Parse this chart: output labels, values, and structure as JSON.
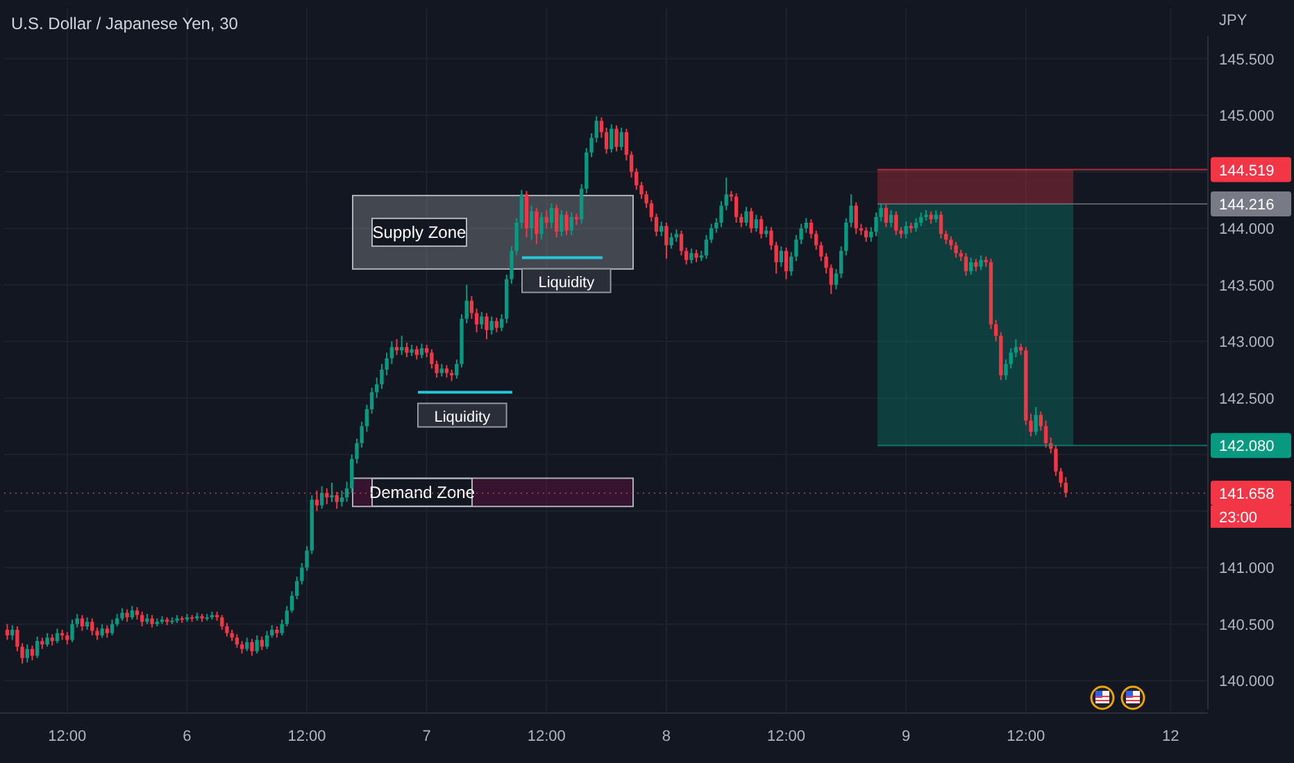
{
  "chart_data": {
    "type": "candlestick",
    "title": "U.S. Dollar / Japanese Yen, 30",
    "ylabel": "JPY",
    "categories": [
      null,
      null,
      null,
      null,
      null,
      null,
      null,
      null,
      null,
      null,
      null,
      null,
      "12:00",
      null,
      null,
      null,
      null,
      null,
      null,
      null,
      null,
      null,
      null,
      null,
      null,
      null,
      null,
      null,
      null,
      null,
      null,
      null,
      null,
      null,
      null,
      null,
      "6",
      null,
      null,
      null,
      null,
      null,
      null,
      null,
      null,
      null,
      null,
      null,
      null,
      null,
      null,
      null,
      null,
      null,
      null,
      null,
      null,
      null,
      null,
      null,
      "12:00",
      null,
      null,
      null,
      null,
      null,
      null,
      null,
      null,
      null,
      null,
      null,
      null,
      null,
      null,
      null,
      null,
      null,
      null,
      null,
      null,
      null,
      null,
      null,
      "7",
      null,
      null,
      null,
      null,
      null,
      null,
      null,
      null,
      null,
      null,
      null,
      null,
      null,
      null,
      null,
      null,
      null,
      null,
      null,
      null,
      null,
      null,
      null,
      "12:00",
      null,
      null,
      null,
      null,
      null,
      null,
      null,
      null,
      null,
      null,
      null,
      null,
      null,
      null,
      null,
      null,
      null,
      null,
      null,
      null,
      null,
      null,
      null,
      "8",
      null,
      null,
      null,
      null,
      null,
      null,
      null,
      null,
      null,
      null,
      null,
      null,
      null,
      null,
      null,
      null,
      null,
      null,
      null,
      null,
      null,
      null,
      null,
      "12:00",
      null,
      null,
      null,
      null,
      null,
      null,
      null,
      null,
      null,
      null,
      null,
      null,
      null,
      null,
      null,
      null,
      null,
      null,
      null,
      null,
      null,
      null,
      null,
      "9",
      null,
      null,
      null,
      null,
      null,
      null,
      null,
      null,
      null,
      null,
      null,
      null,
      null,
      null,
      null,
      null,
      null,
      null,
      null,
      null,
      null,
      null,
      null,
      "12:00",
      null,
      null,
      null,
      null,
      null,
      null,
      null,
      null,
      null,
      null,
      null,
      null,
      null,
      null,
      null,
      null,
      null,
      null,
      null,
      null,
      null,
      null,
      null,
      null,
      null,
      null,
      null,
      null,
      "12",
      null,
      null,
      null,
      null,
      null,
      null,
      null
    ],
    "ohlc": [
      [
        140.45,
        140.5,
        140.36,
        140.4
      ],
      [
        140.4,
        140.49,
        140.36,
        140.45
      ],
      [
        140.45,
        140.48,
        140.26,
        140.3
      ],
      [
        140.3,
        140.33,
        140.15,
        140.2
      ],
      [
        140.2,
        140.32,
        140.16,
        140.28
      ],
      [
        140.28,
        140.31,
        140.18,
        140.22
      ],
      [
        140.22,
        140.39,
        140.2,
        140.35
      ],
      [
        140.35,
        140.38,
        140.28,
        140.32
      ],
      [
        140.32,
        140.42,
        140.3,
        140.38
      ],
      [
        140.38,
        140.41,
        140.31,
        140.35
      ],
      [
        140.35,
        140.46,
        140.33,
        140.42
      ],
      [
        140.42,
        140.45,
        140.36,
        140.4
      ],
      [
        140.4,
        140.43,
        140.32,
        140.36
      ],
      [
        140.36,
        140.54,
        140.34,
        140.5
      ],
      [
        140.5,
        140.59,
        140.47,
        140.55
      ],
      [
        140.55,
        140.58,
        140.44,
        140.48
      ],
      [
        140.48,
        140.56,
        140.45,
        140.52
      ],
      [
        140.52,
        140.55,
        140.4,
        140.44
      ],
      [
        140.44,
        140.47,
        140.36,
        140.4
      ],
      [
        140.4,
        140.5,
        140.38,
        140.46
      ],
      [
        140.46,
        140.49,
        140.38,
        140.42
      ],
      [
        140.42,
        140.54,
        140.4,
        140.5
      ],
      [
        140.5,
        140.59,
        140.48,
        140.55
      ],
      [
        140.55,
        140.64,
        140.53,
        140.6
      ],
      [
        140.6,
        140.63,
        140.52,
        140.56
      ],
      [
        140.56,
        140.66,
        140.54,
        140.62
      ],
      [
        140.62,
        140.65,
        140.54,
        140.58
      ],
      [
        140.58,
        140.61,
        140.48,
        140.52
      ],
      [
        140.52,
        140.59,
        140.5,
        140.55
      ],
      [
        140.55,
        140.58,
        140.47,
        140.5
      ],
      [
        140.5,
        140.55,
        140.48,
        140.52
      ],
      [
        140.52,
        140.57,
        140.5,
        140.54
      ],
      [
        140.54,
        140.56,
        140.49,
        140.52
      ],
      [
        140.52,
        140.56,
        140.5,
        140.53
      ],
      [
        140.53,
        140.58,
        140.51,
        140.55
      ],
      [
        140.55,
        140.57,
        140.51,
        140.54
      ],
      [
        140.54,
        140.59,
        140.52,
        140.56
      ],
      [
        140.56,
        140.58,
        140.52,
        140.55
      ],
      [
        140.55,
        140.6,
        140.53,
        140.57
      ],
      [
        140.57,
        140.59,
        140.52,
        140.55
      ],
      [
        140.55,
        140.59,
        140.53,
        140.56
      ],
      [
        140.56,
        140.61,
        140.54,
        140.58
      ],
      [
        140.58,
        140.61,
        140.53,
        140.56
      ],
      [
        140.56,
        140.58,
        140.45,
        140.48
      ],
      [
        140.48,
        140.51,
        140.39,
        140.42
      ],
      [
        140.42,
        140.45,
        140.35,
        140.38
      ],
      [
        140.38,
        140.41,
        140.29,
        140.32
      ],
      [
        140.32,
        140.35,
        140.24,
        140.28
      ],
      [
        140.28,
        140.38,
        140.26,
        140.34
      ],
      [
        140.34,
        140.37,
        140.22,
        140.26
      ],
      [
        140.26,
        140.4,
        140.24,
        140.36
      ],
      [
        140.36,
        140.39,
        140.27,
        140.3
      ],
      [
        140.3,
        140.44,
        140.28,
        140.4
      ],
      [
        140.4,
        140.49,
        140.38,
        140.45
      ],
      [
        140.45,
        140.48,
        140.38,
        140.42
      ],
      [
        140.42,
        140.54,
        140.4,
        140.5
      ],
      [
        140.5,
        140.66,
        140.48,
        140.62
      ],
      [
        140.62,
        140.79,
        140.6,
        140.75
      ],
      [
        140.75,
        140.92,
        140.72,
        140.88
      ],
      [
        140.88,
        141.04,
        140.85,
        141.0
      ],
      [
        141.0,
        141.19,
        140.97,
        141.15
      ],
      [
        141.15,
        141.64,
        141.12,
        141.6
      ],
      [
        141.6,
        141.68,
        141.5,
        141.55
      ],
      [
        141.55,
        141.72,
        141.52,
        141.66
      ],
      [
        141.66,
        141.7,
        141.56,
        141.62
      ],
      [
        141.62,
        141.75,
        141.58,
        141.64
      ],
      [
        141.64,
        141.67,
        141.52,
        141.58
      ],
      [
        141.58,
        141.68,
        141.54,
        141.62
      ],
      [
        141.62,
        141.76,
        141.58,
        141.7
      ],
      [
        141.7,
        142.0,
        141.66,
        141.96
      ],
      [
        141.96,
        142.14,
        141.92,
        142.1
      ],
      [
        142.1,
        142.29,
        142.06,
        142.25
      ],
      [
        142.25,
        142.44,
        142.2,
        142.4
      ],
      [
        142.4,
        142.59,
        142.36,
        142.55
      ],
      [
        142.55,
        142.68,
        142.5,
        142.62
      ],
      [
        142.62,
        142.8,
        142.58,
        142.75
      ],
      [
        142.75,
        142.9,
        142.7,
        142.85
      ],
      [
        142.85,
        143.0,
        142.8,
        142.95
      ],
      [
        142.95,
        143.02,
        142.88,
        142.92
      ],
      [
        142.92,
        143.05,
        142.88,
        142.95
      ],
      [
        142.95,
        142.99,
        142.86,
        142.9
      ],
      [
        142.9,
        142.97,
        142.87,
        142.93
      ],
      [
        142.93,
        142.96,
        142.84,
        142.88
      ],
      [
        142.88,
        142.98,
        142.85,
        142.94
      ],
      [
        142.94,
        142.97,
        142.86,
        142.9
      ],
      [
        142.9,
        142.93,
        142.76,
        142.8
      ],
      [
        142.8,
        142.83,
        142.68,
        142.72
      ],
      [
        142.72,
        142.8,
        142.69,
        142.76
      ],
      [
        142.76,
        142.79,
        142.68,
        142.72
      ],
      [
        142.72,
        142.75,
        142.65,
        142.7
      ],
      [
        142.7,
        142.84,
        142.67,
        142.8
      ],
      [
        142.8,
        143.24,
        142.77,
        143.2
      ],
      [
        143.2,
        143.5,
        143.16,
        143.36
      ],
      [
        143.36,
        143.4,
        143.2,
        143.25
      ],
      [
        143.25,
        143.29,
        143.08,
        143.15
      ],
      [
        143.15,
        143.26,
        143.11,
        143.22
      ],
      [
        143.22,
        143.25,
        143.02,
        143.1
      ],
      [
        143.1,
        143.22,
        143.06,
        143.18
      ],
      [
        143.18,
        143.21,
        143.08,
        143.12
      ],
      [
        143.12,
        143.24,
        143.09,
        143.2
      ],
      [
        143.2,
        143.59,
        143.16,
        143.55
      ],
      [
        143.55,
        143.84,
        143.51,
        143.8
      ],
      [
        143.8,
        144.09,
        143.76,
        144.05
      ],
      [
        144.05,
        144.34,
        144.0,
        144.3
      ],
      [
        144.3,
        144.33,
        143.92,
        144.0
      ],
      [
        144.0,
        144.2,
        143.9,
        144.15
      ],
      [
        144.15,
        144.18,
        143.86,
        143.95
      ],
      [
        143.95,
        144.14,
        143.9,
        144.1
      ],
      [
        144.1,
        144.16,
        144.0,
        144.05
      ],
      [
        144.05,
        144.22,
        144.0,
        144.18
      ],
      [
        144.18,
        144.21,
        143.92,
        143.97
      ],
      [
        143.97,
        144.16,
        143.93,
        144.12
      ],
      [
        144.12,
        144.15,
        143.94,
        143.98
      ],
      [
        143.98,
        144.14,
        143.94,
        144.1
      ],
      [
        144.1,
        144.13,
        144.03,
        144.08
      ],
      [
        144.08,
        144.39,
        144.04,
        144.35
      ],
      [
        144.35,
        144.71,
        144.31,
        144.67
      ],
      [
        144.67,
        144.84,
        144.63,
        144.8
      ],
      [
        144.8,
        144.99,
        144.76,
        144.95
      ],
      [
        144.95,
        144.98,
        144.8,
        144.85
      ],
      [
        144.85,
        144.89,
        144.66,
        144.7
      ],
      [
        144.7,
        144.92,
        144.67,
        144.88
      ],
      [
        144.88,
        144.91,
        144.68,
        144.72
      ],
      [
        144.72,
        144.89,
        144.69,
        144.85
      ],
      [
        144.85,
        144.88,
        144.6,
        144.65
      ],
      [
        144.65,
        144.68,
        144.45,
        144.5
      ],
      [
        144.5,
        144.53,
        144.34,
        144.38
      ],
      [
        144.38,
        144.41,
        144.26,
        144.3
      ],
      [
        144.3,
        144.33,
        144.18,
        144.22
      ],
      [
        144.22,
        144.25,
        144.06,
        144.1
      ],
      [
        144.1,
        144.13,
        143.93,
        143.97
      ],
      [
        143.97,
        144.06,
        143.93,
        144.02
      ],
      [
        144.02,
        144.05,
        143.73,
        143.85
      ],
      [
        143.85,
        143.96,
        143.82,
        143.92
      ],
      [
        143.92,
        143.99,
        143.88,
        143.95
      ],
      [
        143.95,
        143.98,
        143.76,
        143.8
      ],
      [
        143.8,
        143.83,
        143.68,
        143.72
      ],
      [
        143.72,
        143.82,
        143.69,
        143.78
      ],
      [
        143.78,
        143.81,
        143.7,
        143.74
      ],
      [
        143.74,
        143.8,
        143.71,
        143.76
      ],
      [
        143.76,
        143.94,
        143.73,
        143.9
      ],
      [
        143.9,
        144.04,
        143.87,
        144.0
      ],
      [
        144.0,
        144.09,
        143.96,
        144.05
      ],
      [
        144.05,
        144.24,
        144.01,
        144.2
      ],
      [
        144.2,
        144.45,
        144.16,
        144.3
      ],
      [
        144.3,
        144.33,
        144.24,
        144.28
      ],
      [
        144.28,
        144.31,
        144.05,
        144.1
      ],
      [
        144.1,
        144.13,
        144.01,
        144.05
      ],
      [
        144.05,
        144.19,
        144.02,
        144.15
      ],
      [
        144.15,
        144.18,
        143.96,
        144.0
      ],
      [
        144.0,
        144.12,
        143.97,
        144.08
      ],
      [
        144.08,
        144.11,
        143.91,
        143.95
      ],
      [
        143.95,
        144.02,
        143.92,
        143.98
      ],
      [
        143.98,
        144.01,
        143.81,
        143.85
      ],
      [
        143.85,
        143.88,
        143.6,
        143.7
      ],
      [
        143.7,
        143.84,
        143.66,
        143.8
      ],
      [
        143.8,
        143.83,
        143.55,
        143.62
      ],
      [
        143.62,
        143.79,
        143.58,
        143.75
      ],
      [
        143.75,
        143.94,
        143.71,
        143.9
      ],
      [
        143.9,
        144.04,
        143.86,
        144.0
      ],
      [
        144.0,
        144.09,
        143.96,
        144.05
      ],
      [
        144.05,
        144.08,
        143.91,
        143.95
      ],
      [
        143.95,
        143.98,
        143.81,
        143.85
      ],
      [
        143.85,
        143.88,
        143.71,
        143.75
      ],
      [
        143.75,
        143.78,
        143.6,
        143.65
      ],
      [
        143.65,
        143.68,
        143.42,
        143.5
      ],
      [
        143.5,
        143.64,
        143.46,
        143.6
      ],
      [
        143.6,
        143.84,
        143.56,
        143.8
      ],
      [
        143.8,
        144.09,
        143.76,
        144.05
      ],
      [
        144.05,
        144.3,
        144.01,
        144.2
      ],
      [
        144.2,
        144.23,
        143.95,
        144.0
      ],
      [
        144.0,
        144.04,
        143.94,
        143.98
      ],
      [
        143.98,
        144.01,
        143.88,
        143.92
      ],
      [
        143.92,
        144.01,
        143.88,
        143.97
      ],
      [
        143.97,
        144.14,
        143.93,
        144.1
      ],
      [
        144.1,
        144.22,
        144.06,
        144.18
      ],
      [
        144.18,
        144.21,
        144.01,
        144.05
      ],
      [
        144.05,
        144.16,
        144.01,
        144.12
      ],
      [
        144.12,
        144.15,
        143.94,
        143.98
      ],
      [
        143.98,
        144.01,
        143.91,
        143.95
      ],
      [
        143.95,
        144.06,
        143.91,
        144.02
      ],
      [
        144.02,
        144.05,
        143.96,
        144.0
      ],
      [
        144.0,
        144.09,
        143.97,
        144.05
      ],
      [
        144.05,
        144.14,
        144.02,
        144.1
      ],
      [
        144.1,
        144.16,
        144.07,
        144.12
      ],
      [
        144.12,
        144.15,
        144.04,
        144.08
      ],
      [
        144.08,
        144.16,
        144.05,
        144.12
      ],
      [
        144.12,
        144.15,
        143.91,
        143.95
      ],
      [
        143.95,
        143.98,
        143.86,
        143.9
      ],
      [
        143.9,
        143.93,
        143.81,
        143.85
      ],
      [
        143.85,
        143.88,
        143.74,
        143.78
      ],
      [
        143.78,
        143.81,
        143.71,
        143.75
      ],
      [
        143.75,
        143.78,
        143.58,
        143.62
      ],
      [
        143.62,
        143.74,
        143.59,
        143.7
      ],
      [
        143.7,
        143.73,
        143.62,
        143.66
      ],
      [
        143.66,
        143.76,
        143.63,
        143.72
      ],
      [
        143.72,
        143.75,
        143.66,
        143.7
      ],
      [
        143.7,
        143.73,
        143.11,
        143.15
      ],
      [
        143.15,
        143.19,
        143.0,
        143.05
      ],
      [
        143.05,
        143.08,
        142.66,
        142.7
      ],
      [
        142.7,
        142.84,
        142.66,
        142.8
      ],
      [
        142.8,
        142.94,
        142.76,
        142.9
      ],
      [
        142.9,
        143.02,
        142.86,
        142.95
      ],
      [
        142.95,
        142.98,
        142.88,
        142.92
      ],
      [
        142.92,
        142.95,
        142.26,
        142.3
      ],
      [
        142.3,
        142.36,
        142.16,
        142.2
      ],
      [
        142.2,
        142.42,
        142.17,
        142.35
      ],
      [
        142.35,
        142.38,
        142.21,
        142.25
      ],
      [
        142.25,
        142.3,
        142.06,
        142.1
      ],
      [
        142.1,
        142.15,
        142.01,
        142.05
      ],
      [
        142.05,
        142.08,
        141.81,
        141.85
      ],
      [
        141.85,
        141.88,
        141.71,
        141.75
      ],
      [
        141.75,
        141.8,
        141.62,
        141.66
      ],
      null,
      null,
      null,
      null,
      null,
      null,
      null,
      null,
      null,
      null,
      null,
      null,
      null,
      null,
      null,
      null,
      null,
      null,
      null,
      null,
      null,
      null,
      null,
      null,
      null,
      null,
      null,
      null
    ],
    "ylim": [
      139.75,
      145.7
    ],
    "yticks": [
      {
        "value": 140,
        "label": "140.000"
      },
      {
        "value": 140.5,
        "label": "140.500"
      },
      {
        "value": 141,
        "label": "141.000"
      },
      {
        "value": 141.5,
        "label": null
      },
      {
        "value": 142,
        "label": null
      },
      {
        "value": 142.5,
        "label": "142.500"
      },
      {
        "value": 143,
        "label": "143.000"
      },
      {
        "value": 143.5,
        "label": "143.500"
      },
      {
        "value": 144,
        "label": "144.000"
      },
      {
        "value": 144.5,
        "label": null
      },
      {
        "value": 145,
        "label": "145.000"
      },
      {
        "value": 145.5,
        "label": "145.500"
      }
    ],
    "grid": true,
    "bands": [
      {
        "axis": "y",
        "from": 143.64,
        "to": 144.29,
        "label": "Supply Zone",
        "color": "#b2b5be"
      },
      {
        "axis": "y",
        "from": 141.54,
        "to": 141.79,
        "label": "Demand Zone",
        "color": "#880e4f"
      },
      {
        "axis": "y",
        "from": 144.216,
        "to": 144.519,
        "color": "#f23645"
      },
      {
        "axis": "y",
        "from": 142.08,
        "to": 144.216,
        "color": "#089981"
      }
    ],
    "ref_lines": [
      {
        "axis": "y",
        "value": 142.55,
        "label": "Liquidity",
        "color": "#26c6da"
      },
      {
        "axis": "y",
        "value": 143.74,
        "label": "Liquidity",
        "color": "#26c6da"
      },
      {
        "axis": "y",
        "value": 144.519,
        "label": "144.519",
        "color": "#f23645"
      },
      {
        "axis": "y",
        "value": 144.216,
        "label": "144.216",
        "color": "#787b86"
      },
      {
        "axis": "y",
        "value": 142.08,
        "label": "142.080",
        "color": "#089981"
      },
      {
        "axis": "y",
        "value": 141.658,
        "label": "141.658",
        "color": "#f23645",
        "line_style": "dotted"
      }
    ],
    "annotations": [
      "23:00"
    ]
  }
}
